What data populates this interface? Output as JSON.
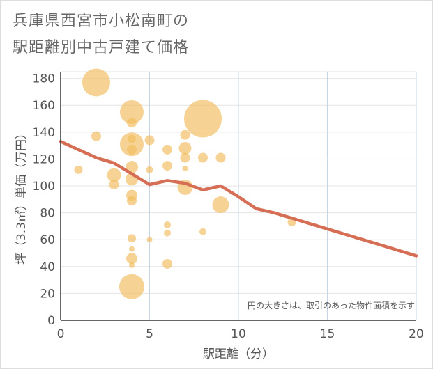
{
  "title": {
    "line1": "兵庫県西宮市小松南町の",
    "line2": "駅距離別中古戸建て価格"
  },
  "chart_data": {
    "type": "scatter",
    "title": "兵庫県西宮市小松南町の駅距離別中古戸建て価格",
    "xlabel": "駅距離（分）",
    "ylabel": "坪（3.3㎡）単価（万円）",
    "xlim": [
      0,
      20
    ],
    "ylim": [
      0,
      185
    ],
    "xticks": [
      0,
      5,
      10,
      15,
      20
    ],
    "yticks": [
      0,
      20,
      40,
      60,
      80,
      100,
      120,
      140,
      160,
      180
    ],
    "grid": true,
    "note": "円の大きさは、取引のあった物件面積を示す",
    "bubble_color": "#f2be62",
    "line_color": "#d66e55",
    "points": [
      {
        "x": 1,
        "y": 112,
        "s": 6
      },
      {
        "x": 2,
        "y": 177,
        "s": 20
      },
      {
        "x": 2,
        "y": 137,
        "s": 7
      },
      {
        "x": 3,
        "y": 108,
        "s": 10
      },
      {
        "x": 3,
        "y": 101,
        "s": 7
      },
      {
        "x": 4,
        "y": 155,
        "s": 17
      },
      {
        "x": 4,
        "y": 147,
        "s": 7
      },
      {
        "x": 4,
        "y": 135,
        "s": 6
      },
      {
        "x": 4,
        "y": 131,
        "s": 17
      },
      {
        "x": 4,
        "y": 127,
        "s": 7
      },
      {
        "x": 4,
        "y": 114,
        "s": 9
      },
      {
        "x": 4,
        "y": 105,
        "s": 9
      },
      {
        "x": 4,
        "y": 93,
        "s": 8
      },
      {
        "x": 4,
        "y": 89,
        "s": 7
      },
      {
        "x": 4,
        "y": 61,
        "s": 6
      },
      {
        "x": 4,
        "y": 53,
        "s": 4
      },
      {
        "x": 4,
        "y": 46,
        "s": 8
      },
      {
        "x": 4,
        "y": 41,
        "s": 4
      },
      {
        "x": 4,
        "y": 25,
        "s": 18
      },
      {
        "x": 5,
        "y": 134,
        "s": 7
      },
      {
        "x": 5,
        "y": 112,
        "s": 5
      },
      {
        "x": 5,
        "y": 60,
        "s": 4
      },
      {
        "x": 6,
        "y": 127,
        "s": 7
      },
      {
        "x": 6,
        "y": 115,
        "s": 7
      },
      {
        "x": 6,
        "y": 71,
        "s": 5
      },
      {
        "x": 6,
        "y": 65,
        "s": 5
      },
      {
        "x": 6,
        "y": 42,
        "s": 7
      },
      {
        "x": 7,
        "y": 138,
        "s": 7
      },
      {
        "x": 7,
        "y": 128,
        "s": 9
      },
      {
        "x": 7,
        "y": 121,
        "s": 7
      },
      {
        "x": 7,
        "y": 113,
        "s": 4
      },
      {
        "x": 7,
        "y": 99,
        "s": 11
      },
      {
        "x": 8,
        "y": 150,
        "s": 27
      },
      {
        "x": 8,
        "y": 121,
        "s": 7
      },
      {
        "x": 8,
        "y": 66,
        "s": 5
      },
      {
        "x": 9,
        "y": 121,
        "s": 7
      },
      {
        "x": 9,
        "y": 86,
        "s": 12
      },
      {
        "x": 13,
        "y": 73,
        "s": 6
      }
    ],
    "trend": {
      "name": "average",
      "x": [
        0,
        1,
        2,
        3,
        4,
        5,
        6,
        7,
        8,
        9,
        10,
        11,
        12,
        13,
        14,
        15,
        16,
        17,
        18,
        19,
        20
      ],
      "y": [
        133,
        127,
        121,
        117,
        109,
        101,
        104,
        102,
        97,
        100,
        92,
        83,
        80,
        76,
        72,
        68,
        64,
        60,
        56,
        52,
        48
      ]
    }
  }
}
